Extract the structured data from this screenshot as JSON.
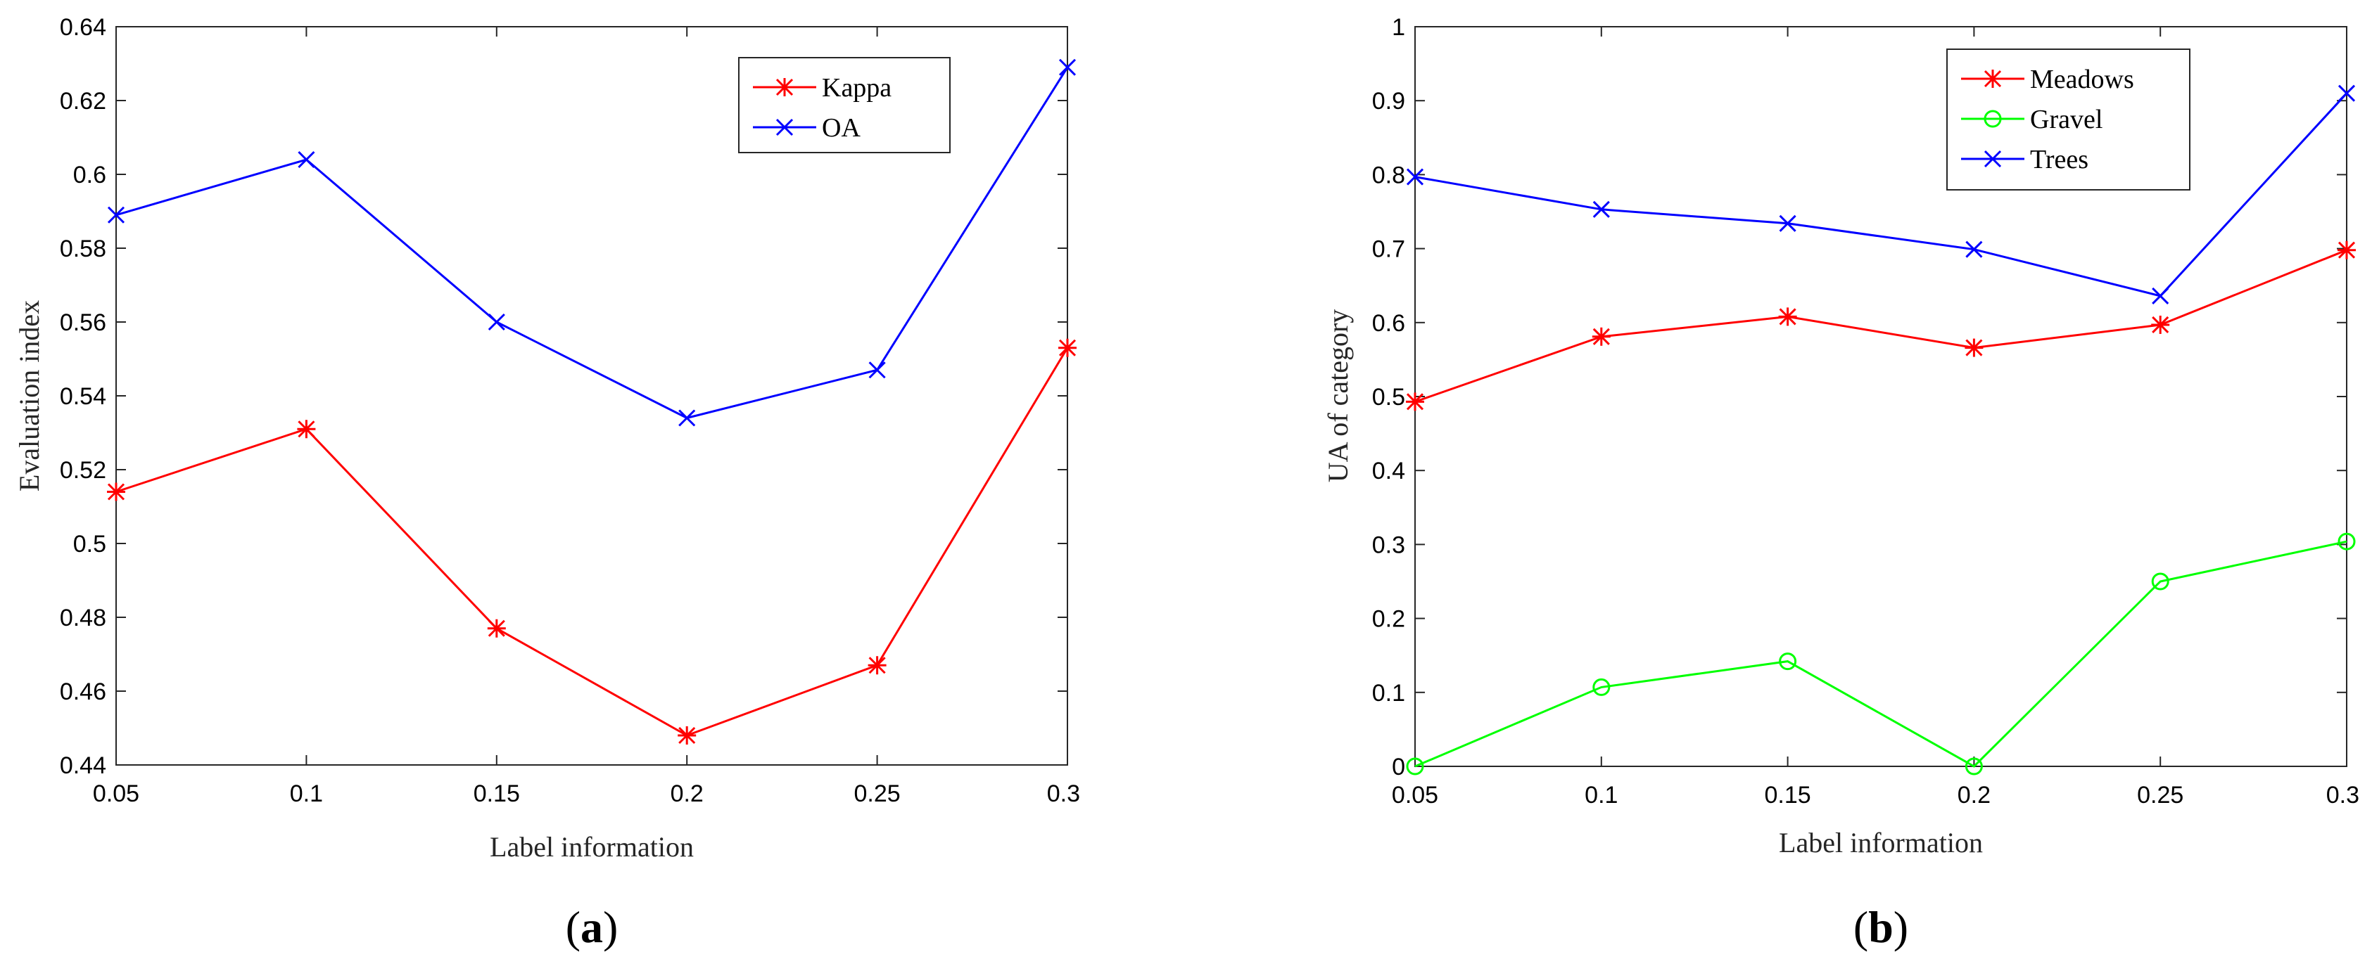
{
  "colors": {
    "red": "#ff0000",
    "blue": "#0000ff",
    "green": "#00ff00",
    "axis": "#262626"
  },
  "chart_data": [
    {
      "id": "a",
      "type": "line",
      "panel_label": {
        "open": "(",
        "letter": "a",
        "close": ")"
      },
      "xlabel": "Label information",
      "ylabel": "Evaluation index",
      "xlim": [
        0.05,
        0.3
      ],
      "ylim": [
        0.44,
        0.64
      ],
      "xticks": [
        "0.05",
        "0.1",
        "0.15",
        "0.2",
        "0.25",
        "0.3"
      ],
      "xtick_values": [
        0.05,
        0.1,
        0.15,
        0.2,
        0.25,
        0.3
      ],
      "yticks": [
        "0.44",
        "0.46",
        "0.48",
        "0.5",
        "0.52",
        "0.54",
        "0.56",
        "0.58",
        "0.6",
        "0.62",
        "0.64"
      ],
      "ytick_values": [
        0.44,
        0.46,
        0.48,
        0.5,
        0.52,
        0.54,
        0.56,
        0.58,
        0.6,
        0.62,
        0.64
      ],
      "legend_position": "top-right",
      "x": [
        0.05,
        0.1,
        0.15,
        0.2,
        0.25,
        0.3
      ],
      "series": [
        {
          "name": "Kappa",
          "color": "red",
          "marker": "asterisk",
          "values": [
            0.514,
            0.531,
            0.477,
            0.448,
            0.467,
            0.553
          ]
        },
        {
          "name": "OA",
          "color": "blue",
          "marker": "x",
          "values": [
            0.589,
            0.604,
            0.56,
            0.534,
            0.547,
            0.629
          ]
        }
      ]
    },
    {
      "id": "b",
      "type": "line",
      "panel_label": {
        "open": "(",
        "letter": "b",
        "close": ")"
      },
      "xlabel": "Label information",
      "ylabel": "UA of category",
      "xlim": [
        0.05,
        0.3
      ],
      "ylim": [
        0,
        1
      ],
      "xticks": [
        "0.05",
        "0.1",
        "0.15",
        "0.2",
        "0.25",
        "0.3"
      ],
      "xtick_values": [
        0.05,
        0.1,
        0.15,
        0.2,
        0.25,
        0.3
      ],
      "yticks": [
        "0",
        "0.1",
        "0.2",
        "0.3",
        "0.4",
        "0.5",
        "0.6",
        "0.7",
        "0.8",
        "0.9",
        "1"
      ],
      "ytick_values": [
        0,
        0.1,
        0.2,
        0.3,
        0.4,
        0.5,
        0.6,
        0.7,
        0.8,
        0.9,
        1
      ],
      "legend_position": "top-right",
      "x": [
        0.05,
        0.1,
        0.15,
        0.2,
        0.25,
        0.3
      ],
      "series": [
        {
          "name": "Meadows",
          "color": "red",
          "marker": "asterisk",
          "values": [
            0.493,
            0.581,
            0.608,
            0.566,
            0.597,
            0.698
          ]
        },
        {
          "name": "Gravel",
          "color": "green",
          "marker": "circle",
          "values": [
            0.0,
            0.107,
            0.142,
            0.0,
            0.25,
            0.304
          ]
        },
        {
          "name": "Trees",
          "color": "blue",
          "marker": "x",
          "values": [
            0.797,
            0.753,
            0.734,
            0.699,
            0.636,
            0.91
          ]
        }
      ]
    }
  ]
}
